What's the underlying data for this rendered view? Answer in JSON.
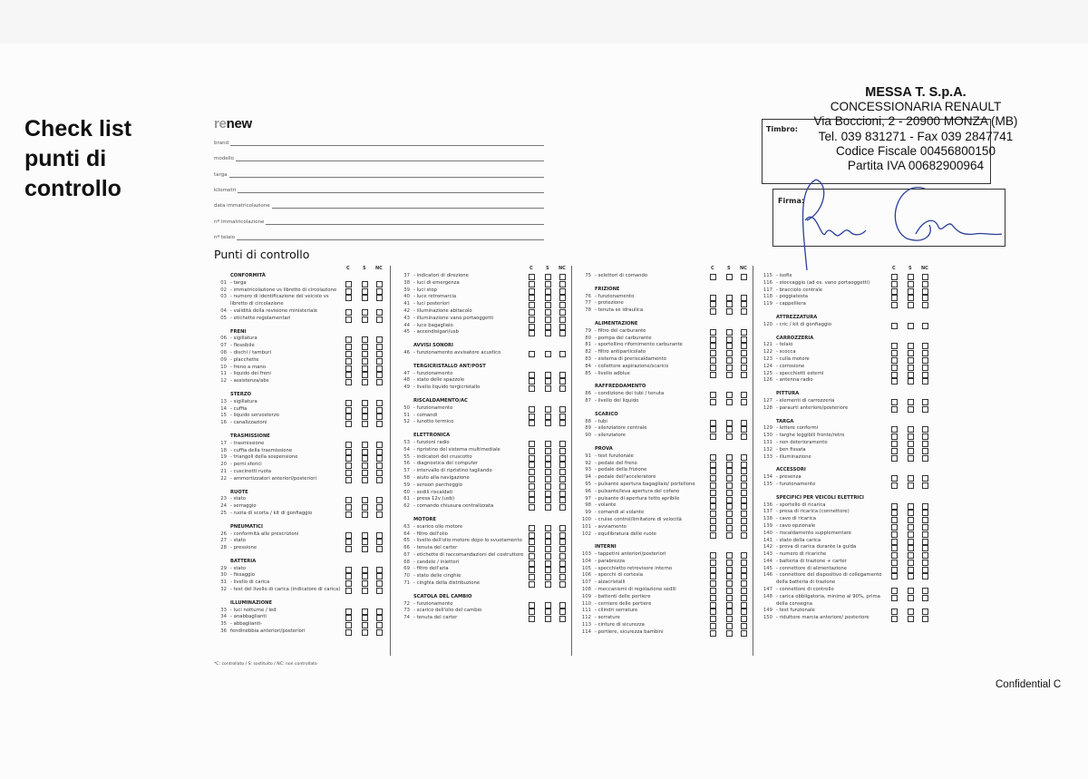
{
  "title": "Check list punti di controllo",
  "logo": {
    "prefix": "re",
    "suffix": "new"
  },
  "fields": [
    "brand",
    "modello",
    "targa",
    "kilometri",
    "data immatricolazione",
    "nº immatricolazione",
    "nº telaio"
  ],
  "section_title": "Punti di controllo",
  "column_headers": [
    "C",
    "S",
    "NC"
  ],
  "columns": [
    [
      {
        "title": "CONFORMITÀ",
        "items": [
          [
            "01",
            "- targa"
          ],
          [
            "02",
            "- immatricolazione vs libretto di circolazione"
          ],
          [
            "03",
            "- numero di identificazione del veicolo vs libretto di circolazione"
          ],
          [
            "04",
            "- validità della revisione ministeriale"
          ],
          [
            "05",
            "- etichette regolamentari"
          ]
        ]
      },
      {
        "title": "FRENI",
        "items": [
          [
            "06",
            "- sigillatura"
          ],
          [
            "07",
            "- flessibile"
          ],
          [
            "08",
            "- dischi / tamburi"
          ],
          [
            "09",
            "- placchette"
          ],
          [
            "10",
            "- freno a mano"
          ],
          [
            "11",
            "- liquido dei freni"
          ],
          [
            "12",
            "- assistenza/abs"
          ]
        ]
      },
      {
        "title": "STERZO",
        "items": [
          [
            "13",
            "- sigillatura"
          ],
          [
            "14",
            "- cuffia"
          ],
          [
            "15",
            "- liquido servosterzo"
          ],
          [
            "16",
            "- canalizzazioni"
          ]
        ]
      },
      {
        "title": "TRASMISSIONE",
        "items": [
          [
            "17",
            "- trasmissione"
          ],
          [
            "18",
            "- cuffia della trasmissione"
          ],
          [
            "19",
            "- triangoli della sospensione"
          ],
          [
            "20",
            "- perni sferici"
          ],
          [
            "21",
            "- cuscinetti ruota"
          ],
          [
            "22",
            "- ammortizzatori anteriori/posteriori"
          ]
        ]
      },
      {
        "title": "RUOTE",
        "items": [
          [
            "23",
            "- stato"
          ],
          [
            "24",
            "- serraggio"
          ],
          [
            "25",
            "- ruota di scorta / kit di gonfiaggio"
          ]
        ]
      },
      {
        "title": "PNEUMATICI",
        "items": [
          [
            "26",
            "- conformità alle prescrizioni"
          ],
          [
            "27",
            "- stato"
          ],
          [
            "28",
            "- pressione"
          ]
        ]
      },
      {
        "title": "BATTERIA",
        "items": [
          [
            "29",
            "- stato"
          ],
          [
            "30",
            "- fissaggio"
          ],
          [
            "31",
            "- livello di carica"
          ],
          [
            "32",
            "- test del livello di carica (indicatore di carica)"
          ]
        ]
      },
      {
        "title": "ILLUMINAZIONE",
        "items": [
          [
            "33",
            "- luci notturne / led"
          ],
          [
            "34",
            "- anabbaglianti"
          ],
          [
            "35",
            "- abbaglianti-"
          ],
          [
            "36",
            "fendinebbia anteriori/posteriori"
          ]
        ]
      }
    ],
    [
      {
        "title": "",
        "items": [
          [
            "37",
            "- indicatori di direzione"
          ],
          [
            "38",
            "- luci di emergenza"
          ],
          [
            "39",
            "- luci stop"
          ],
          [
            "40",
            "- luce retromarcia"
          ],
          [
            "41",
            "- luci posteriori"
          ],
          [
            "42",
            "- illuminazione abitacolo"
          ],
          [
            "43",
            "- illuminazione vano portaoggetti"
          ],
          [
            "44",
            "- luce bagagliaio"
          ],
          [
            "45",
            "- accendisigari/usb"
          ]
        ]
      },
      {
        "title": "AVVISI SONORI",
        "items": [
          [
            "46",
            "- funzionamento avvisatore acustico"
          ]
        ]
      },
      {
        "title": "TERGICRISTALLO ANT/POST",
        "items": [
          [
            "47",
            "- funzionamento"
          ],
          [
            "48",
            "- stato delle spazzole"
          ],
          [
            "49",
            "- livello liquido tergicristallo"
          ]
        ]
      },
      {
        "title": "RISCALDAMENTO/AC",
        "items": [
          [
            "50",
            "- funzionamento"
          ],
          [
            "51",
            "- comandi"
          ],
          [
            "52",
            "- lunotto termico"
          ]
        ]
      },
      {
        "title": "ELETTRONICA",
        "items": [
          [
            "53",
            "- funzioni radio"
          ],
          [
            "54",
            "- ripristino del sistema multimediale"
          ],
          [
            "55",
            "- indicatori del cruscotto"
          ],
          [
            "56",
            "- diagnostica del computer"
          ],
          [
            "57",
            "- intervallo di ripristino tagliando"
          ],
          [
            "58",
            "- aiuto alla navigazione"
          ],
          [
            "59",
            "- sensori parcheggio"
          ],
          [
            "60",
            "- sedili riscaldati"
          ],
          [
            "61",
            "- presa 12v (usb)"
          ],
          [
            "62",
            "- comando chiusura centralizzata"
          ]
        ]
      },
      {
        "title": "MOTORE",
        "items": [
          [
            "63",
            "- scarico olio motore"
          ],
          [
            "64",
            "- filtro dell'olio"
          ],
          [
            "65",
            "- livello dell'olio motore dopo lo svuotamento"
          ],
          [
            "66",
            "- tenuta del carter"
          ],
          [
            "67",
            "- etichette di raccomandazioni del costruttore"
          ],
          [
            "68",
            "- candele / iniettori"
          ],
          [
            "69",
            "- filtro dell'aria"
          ],
          [
            "70",
            "- stato delle cinghie"
          ],
          [
            "71",
            "- cinghia della distribuzione"
          ]
        ]
      },
      {
        "title": "SCATOLA DEL CAMBIO",
        "items": [
          [
            "72",
            "- funzionamento"
          ],
          [
            "73",
            "- scarico dell'olio del cambio"
          ],
          [
            "74",
            "- tenuta del carter"
          ]
        ]
      }
    ],
    [
      {
        "title": "",
        "items": [
          [
            "75",
            "- selettori di comando"
          ]
        ]
      },
      {
        "title": "FRIZIONE",
        "items": [
          [
            "76",
            "- funzionamento"
          ],
          [
            "77",
            "- protezione"
          ],
          [
            "78",
            "- tenuta se idraulica"
          ]
        ]
      },
      {
        "title": "ALIMENTAZIONE",
        "items": [
          [
            "79",
            "- filtro del carburante"
          ],
          [
            "80",
            "- pompa del carburante"
          ],
          [
            "81",
            "- sportellino rifornimento carburante"
          ],
          [
            "82",
            "- filtro antiparticolato"
          ],
          [
            "83",
            "- sistema di preriscaldamento"
          ],
          [
            "84",
            "- collettore aspirazione/scarico"
          ],
          [
            "85",
            "- livello adblue"
          ]
        ]
      },
      {
        "title": "RAFFREDDAMENTO",
        "items": [
          [
            "86",
            "- condizione dei tubi / tenuta"
          ],
          [
            "87",
            "- livello del liquido"
          ]
        ]
      },
      {
        "title": "SCARICO",
        "items": [
          [
            "88",
            "- tubi"
          ],
          [
            "89",
            "- silenziatore centrale"
          ],
          [
            "90",
            "- silenziatore"
          ]
        ]
      },
      {
        "title": "PROVA",
        "items": [
          [
            "91",
            "- test funzionale"
          ],
          [
            "92",
            "- pedale del freno"
          ],
          [
            "93",
            "- pedale della frizione"
          ],
          [
            "94",
            "- pedale dell'acceleratore"
          ],
          [
            "95",
            "- pulsante apertura bagagliaio/ portellone"
          ],
          [
            "96",
            "- pulsante/leva apertura del cofano"
          ],
          [
            "97",
            "- pulsante di apertura tetto apribile"
          ],
          [
            "98",
            "- volante"
          ],
          [
            "99",
            "- comandi al volante"
          ],
          [
            "100",
            "- cruise control/limitatore di velocità"
          ],
          [
            "101",
            "- avviamento"
          ],
          [
            "102",
            "- equilibratura delle ruote"
          ]
        ]
      },
      {
        "title": "INTERNI",
        "items": [
          [
            "103",
            "- tappetini anteriori/posteriori"
          ],
          [
            "104",
            "- parabrezza"
          ],
          [
            "105",
            "- specchietto retrovisore interno"
          ],
          [
            "106",
            "- specchi di cortesia"
          ],
          [
            "107",
            "- alzacristalli"
          ],
          [
            "108",
            "- meccanismi di regolazione sedili"
          ],
          [
            "109",
            "- battenti delle portiere"
          ],
          [
            "110",
            "- cerniere delle portiere"
          ],
          [
            "111",
            "- cilindri serrature"
          ],
          [
            "112",
            "- serrature"
          ],
          [
            "113",
            "- cinture di sicurezza"
          ],
          [
            "114",
            "- portiere, sicurezza bambini"
          ]
        ]
      }
    ],
    [
      {
        "title": "",
        "items": [
          [
            "115",
            "- isofix"
          ],
          [
            "116",
            "- stoccaggio (ad es. vano portaoggetti)"
          ],
          [
            "117",
            "- bracciolo centrale"
          ],
          [
            "118",
            "- poggiatesta"
          ],
          [
            "119",
            "- cappelliera"
          ]
        ]
      },
      {
        "title": "ATTREZZATURA",
        "items": [
          [
            "120",
            "- cric / kit di gonfiaggio"
          ]
        ]
      },
      {
        "title": "CARROZZERIA",
        "items": [
          [
            "121",
            "- telaio"
          ],
          [
            "122",
            "- scocca"
          ],
          [
            "123",
            "- culla motore"
          ],
          [
            "124",
            "- corrosione"
          ],
          [
            "125",
            "- specchietti esterni"
          ],
          [
            "126",
            "- antenna radio"
          ]
        ]
      },
      {
        "title": "PITTURA",
        "items": [
          [
            "127",
            "- elementi di carrozzeria"
          ],
          [
            "128",
            "- paraurti anteriore/posteriore"
          ]
        ]
      },
      {
        "title": "TARGA",
        "items": [
          [
            "129",
            "- lettere conformi"
          ],
          [
            "130",
            "- targhe leggibili fronte/retro"
          ],
          [
            "131",
            "- non deterioramento"
          ],
          [
            "132",
            "- ben fissata"
          ],
          [
            "133",
            "- illuminazione"
          ]
        ]
      },
      {
        "title": "ACCESSORI",
        "items": [
          [
            "134",
            "- presenza"
          ],
          [
            "135",
            "- funzionamento"
          ]
        ]
      },
      {
        "title": "SPECIFICI PER VEICOLI ELETTRICI",
        "items": [
          [
            "136",
            "- sportello di ricarica"
          ],
          [
            "137",
            "- presa di ricarica (connettore)"
          ],
          [
            "138",
            "- cavo di ricarica"
          ],
          [
            "139",
            "- cavo opzionale"
          ],
          [
            "140",
            "- riscaldamento supplementare"
          ],
          [
            "141",
            "- stato della carica"
          ],
          [
            "142",
            "- prova di carica durante la guida"
          ],
          [
            "143",
            "- numero di ricariche"
          ],
          [
            "144",
            "- batteria di trazione + carter"
          ],
          [
            "145",
            "- connettore di alimentazione"
          ],
          [
            "146",
            "- connettore del dispositivo di collegamento della batteria di trazione"
          ],
          [
            "147",
            "- connettore di controllo"
          ],
          [
            "148",
            "- carica obbligatoria, minimo al 90%, prima della consegna"
          ],
          [
            "149",
            "- test funzionale"
          ],
          [
            "150",
            "- riduttore marcia anteriore/ posteriore"
          ]
        ]
      }
    ]
  ],
  "footnote": "*C: controllato / S: sostituito / NC: non controllato",
  "stamp": {
    "lines": [
      "MESSA T. S.p.A.",
      "CONCESSIONARIA RENAULT",
      "Via Boccioni, 2 - 20900 MONZA (MB)",
      "Tel. 039 831271 - Fax 039 2847741",
      "Codice Fiscale 00456800150",
      "Partita IVA 00682900964"
    ],
    "timbro_label": "Timbro:",
    "firma_label": "Firma:"
  },
  "confidential": "Confidential C",
  "colors": {
    "signature": "#2a3f9a",
    "text": "#222222"
  }
}
